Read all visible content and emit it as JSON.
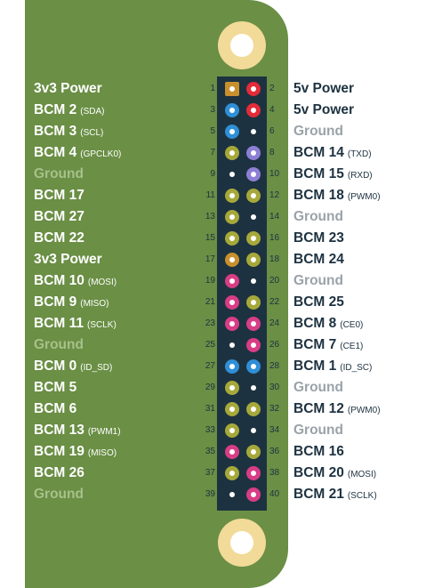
{
  "colors": {
    "board": "#6a8f45",
    "header": "#1d3240",
    "power3v3": "#c8902d",
    "power5v": "#e32b39",
    "i2c": "#2f8fd8",
    "uart": "#8d7fd4",
    "gpio": "#a6a93a",
    "spi": "#d83d86",
    "eeprom": "#2f8fd8",
    "ground": "#1d3240"
  },
  "pins": [
    {
      "odd_num": "1",
      "odd_name": "3v3 Power",
      "odd_sub": "",
      "odd_type": "power3v3",
      "even_num": "2",
      "even_name": "5v Power",
      "even_sub": "",
      "even_type": "power5v"
    },
    {
      "odd_num": "3",
      "odd_name": "BCM 2",
      "odd_sub": "(SDA)",
      "odd_type": "i2c",
      "even_num": "4",
      "even_name": "5v Power",
      "even_sub": "",
      "even_type": "power5v"
    },
    {
      "odd_num": "5",
      "odd_name": "BCM 3",
      "odd_sub": "(SCL)",
      "odd_type": "i2c",
      "even_num": "6",
      "even_name": "Ground",
      "even_sub": "",
      "even_type": "ground"
    },
    {
      "odd_num": "7",
      "odd_name": "BCM 4",
      "odd_sub": "(GPCLK0)",
      "odd_type": "gpio",
      "even_num": "8",
      "even_name": "BCM 14",
      "even_sub": "(TXD)",
      "even_type": "uart"
    },
    {
      "odd_num": "9",
      "odd_name": "Ground",
      "odd_sub": "",
      "odd_type": "ground",
      "even_num": "10",
      "even_name": "BCM 15",
      "even_sub": "(RXD)",
      "even_type": "uart"
    },
    {
      "odd_num": "11",
      "odd_name": "BCM 17",
      "odd_sub": "",
      "odd_type": "gpio",
      "even_num": "12",
      "even_name": "BCM 18",
      "even_sub": "(PWM0)",
      "even_type": "gpio"
    },
    {
      "odd_num": "13",
      "odd_name": "BCM 27",
      "odd_sub": "",
      "odd_type": "gpio",
      "even_num": "14",
      "even_name": "Ground",
      "even_sub": "",
      "even_type": "ground"
    },
    {
      "odd_num": "15",
      "odd_name": "BCM 22",
      "odd_sub": "",
      "odd_type": "gpio",
      "even_num": "16",
      "even_name": "BCM 23",
      "even_sub": "",
      "even_type": "gpio"
    },
    {
      "odd_num": "17",
      "odd_name": "3v3 Power",
      "odd_sub": "",
      "odd_type": "power3v3",
      "even_num": "18",
      "even_name": "BCM 24",
      "even_sub": "",
      "even_type": "gpio"
    },
    {
      "odd_num": "19",
      "odd_name": "BCM 10",
      "odd_sub": "(MOSI)",
      "odd_type": "spi",
      "even_num": "20",
      "even_name": "Ground",
      "even_sub": "",
      "even_type": "ground"
    },
    {
      "odd_num": "21",
      "odd_name": "BCM 9",
      "odd_sub": "(MISO)",
      "odd_type": "spi",
      "even_num": "22",
      "even_name": "BCM 25",
      "even_sub": "",
      "even_type": "gpio"
    },
    {
      "odd_num": "23",
      "odd_name": "BCM 11",
      "odd_sub": "(SCLK)",
      "odd_type": "spi",
      "even_num": "24",
      "even_name": "BCM 8",
      "even_sub": "(CE0)",
      "even_type": "spi"
    },
    {
      "odd_num": "25",
      "odd_name": "Ground",
      "odd_sub": "",
      "odd_type": "ground",
      "even_num": "26",
      "even_name": "BCM 7",
      "even_sub": "(CE1)",
      "even_type": "spi"
    },
    {
      "odd_num": "27",
      "odd_name": "BCM 0",
      "odd_sub": "(ID_SD)",
      "odd_type": "eeprom",
      "even_num": "28",
      "even_name": "BCM 1",
      "even_sub": "(ID_SC)",
      "even_type": "eeprom"
    },
    {
      "odd_num": "29",
      "odd_name": "BCM 5",
      "odd_sub": "",
      "odd_type": "gpio",
      "even_num": "30",
      "even_name": "Ground",
      "even_sub": "",
      "even_type": "ground"
    },
    {
      "odd_num": "31",
      "odd_name": "BCM 6",
      "odd_sub": "",
      "odd_type": "gpio",
      "even_num": "32",
      "even_name": "BCM 12",
      "even_sub": "(PWM0)",
      "even_type": "gpio"
    },
    {
      "odd_num": "33",
      "odd_name": "BCM 13",
      "odd_sub": "(PWM1)",
      "odd_type": "gpio",
      "even_num": "34",
      "even_name": "Ground",
      "even_sub": "",
      "even_type": "ground"
    },
    {
      "odd_num": "35",
      "odd_name": "BCM 19",
      "odd_sub": "(MISO)",
      "odd_type": "spi",
      "even_num": "36",
      "even_name": "BCM 16",
      "even_sub": "",
      "even_type": "gpio"
    },
    {
      "odd_num": "37",
      "odd_name": "BCM 26",
      "odd_sub": "",
      "odd_type": "gpio",
      "even_num": "38",
      "even_name": "BCM 20",
      "even_sub": "(MOSI)",
      "even_type": "spi"
    },
    {
      "odd_num": "39",
      "odd_name": "Ground",
      "odd_sub": "",
      "odd_type": "ground",
      "even_num": "40",
      "even_name": "BCM 21",
      "even_sub": "(SCLK)",
      "even_type": "spi"
    }
  ]
}
